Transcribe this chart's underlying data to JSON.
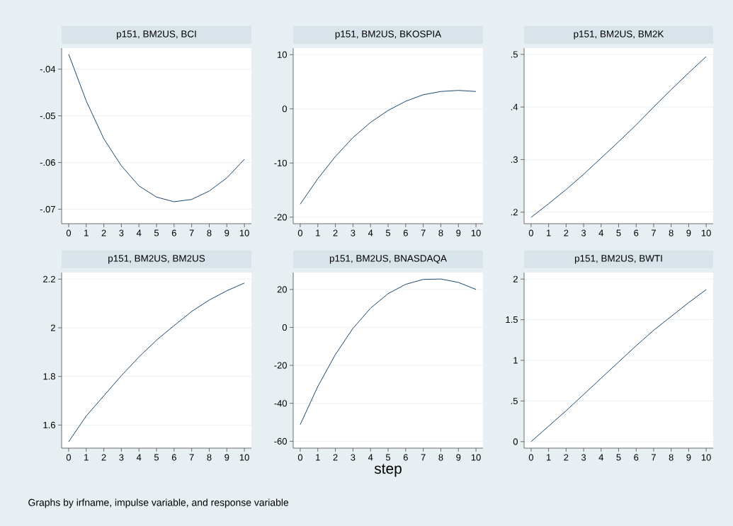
{
  "chart_data": [
    {
      "type": "line",
      "title": "p151, BM2US, BCI",
      "x": [
        0,
        1,
        2,
        3,
        4,
        5,
        6,
        7,
        8,
        9,
        10
      ],
      "values": [
        -0.0368,
        -0.0468,
        -0.0549,
        -0.0607,
        -0.065,
        -0.0674,
        -0.0684,
        -0.0679,
        -0.0661,
        -0.0633,
        -0.0593
      ],
      "color": "#1a476f",
      "xlim": [
        -0.4,
        10.4
      ],
      "xticks": [
        0,
        1,
        2,
        3,
        4,
        5,
        6,
        7,
        8,
        9,
        10
      ],
      "ylim": [
        -0.0731,
        -0.0355
      ],
      "yticks": [
        {
          "value": -0.07,
          "label": "-.07"
        },
        {
          "value": -0.06,
          "label": "-.06"
        },
        {
          "value": -0.05,
          "label": "-.05"
        },
        {
          "value": -0.04,
          "label": "-.04"
        }
      ],
      "grid": "y"
    },
    {
      "type": "line",
      "title": "p151, BM2US, BKOSPIA",
      "x": [
        0,
        1,
        2,
        3,
        4,
        5,
        6,
        7,
        8,
        9,
        10
      ],
      "values": [
        -17.6,
        -12.9,
        -8.8,
        -5.3,
        -2.5,
        -0.3,
        1.4,
        2.6,
        3.2,
        3.4,
        3.2
      ],
      "color": "#1a476f",
      "xlim": [
        -0.4,
        10.4
      ],
      "xticks": [
        0,
        1,
        2,
        3,
        4,
        5,
        6,
        7,
        8,
        9,
        10
      ],
      "ylim": [
        -21.2,
        11.2
      ],
      "yticks": [
        -20,
        -10,
        0,
        10
      ],
      "grid": "y"
    },
    {
      "type": "line",
      "title": "p151, BM2US, BM2K",
      "x": [
        0,
        1,
        2,
        3,
        4,
        5,
        6,
        7,
        8,
        9,
        10
      ],
      "values": [
        0.19,
        0.216,
        0.243,
        0.272,
        0.303,
        0.334,
        0.366,
        0.4,
        0.433,
        0.465,
        0.496
      ],
      "color": "#1a476f",
      "xlim": [
        -0.4,
        10.4
      ],
      "xticks": [
        0,
        1,
        2,
        3,
        4,
        5,
        6,
        7,
        8,
        9,
        10
      ],
      "ylim": [
        0.178,
        0.512
      ],
      "yticks": [
        {
          "value": 0.2,
          "label": ".2"
        },
        {
          "value": 0.3,
          "label": ".3"
        },
        {
          "value": 0.4,
          "label": ".4"
        },
        {
          "value": 0.5,
          "label": ".5"
        }
      ],
      "grid": "y"
    },
    {
      "type": "line",
      "title": "p151, BM2US, BM2US",
      "x": [
        0,
        1,
        2,
        3,
        4,
        5,
        6,
        7,
        8,
        9,
        10
      ],
      "values": [
        1.531,
        1.637,
        1.72,
        1.803,
        1.88,
        1.949,
        2.009,
        2.067,
        2.114,
        2.152,
        2.184
      ],
      "color": "#1a476f",
      "xlim": [
        -0.4,
        10.4
      ],
      "xticks": [
        0,
        1,
        2,
        3,
        4,
        5,
        6,
        7,
        8,
        9,
        10
      ],
      "ylim": [
        1.505,
        2.227
      ],
      "yticks": [
        1.6,
        1.8,
        2,
        2.2
      ],
      "grid": "y",
      "annotations": [
        "Graphs by irfname, impulse variable, and response variable"
      ]
    },
    {
      "type": "line",
      "title": "p151, BM2US, BNASDAQA",
      "x": [
        0,
        1,
        2,
        3,
        4,
        5,
        6,
        7,
        8,
        9,
        10
      ],
      "values": [
        -51.2,
        -31.1,
        -14.3,
        -0.5,
        10.1,
        17.8,
        22.7,
        25.3,
        25.5,
        23.7,
        20.0
      ],
      "color": "#1a476f",
      "xlim": [
        -0.4,
        10.4
      ],
      "xticks": [
        0,
        1,
        2,
        3,
        4,
        5,
        6,
        7,
        8,
        9,
        10
      ],
      "ylim": [
        -63.6,
        28.9
      ],
      "yticks": [
        -60,
        -40,
        -20,
        0,
        20
      ],
      "grid": "y",
      "xlabel": "step"
    },
    {
      "type": "line",
      "title": "p151, BM2US, BWTI",
      "x": [
        0,
        1,
        2,
        3,
        4,
        5,
        6,
        7,
        8,
        9,
        10
      ],
      "values": [
        0,
        0.19,
        0.38,
        0.58,
        0.78,
        0.98,
        1.18,
        1.37,
        1.54,
        1.71,
        1.87
      ],
      "color": "#1a476f",
      "xlim": [
        -0.4,
        10.4
      ],
      "xticks": [
        0,
        1,
        2,
        3,
        4,
        5,
        6,
        7,
        8,
        9,
        10
      ],
      "ylim": [
        -0.08,
        2.08
      ],
      "yticks": [
        0,
        {
          "value": 0.5,
          "label": ".5"
        },
        1,
        1.5,
        2
      ],
      "grid": "y"
    }
  ]
}
